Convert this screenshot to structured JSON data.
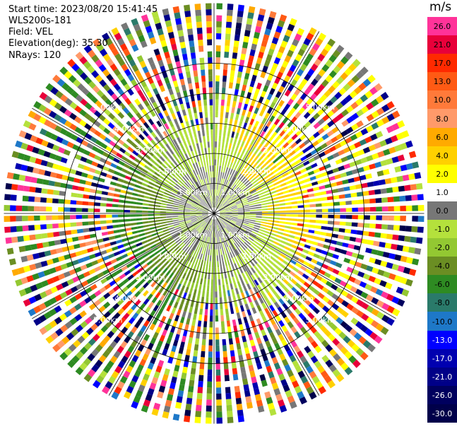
{
  "header": {
    "start_time": "Start time: 2023/08/20 15:41:45",
    "instrument": "WLS200s-181",
    "field": "Field: VEL",
    "elevation": "Elevation(deg): 35.30",
    "nrays": "NRays: 120"
  },
  "colorbar": {
    "unit": "m/s",
    "labels": [
      "26.0",
      "21.0",
      "17.0",
      "13.0",
      "10.0",
      "8.0",
      "6.0",
      "4.0",
      "2.0",
      "1.0",
      "0.0",
      "-1.0",
      "-2.0",
      "-4.0",
      "-6.0",
      "-8.0",
      "-10.0",
      "-13.0",
      "-17.0",
      "-21.0",
      "-26.0",
      "-30.0"
    ],
    "colors": [
      "#ff3399",
      "#e8003a",
      "#ff2a00",
      "#ff5a14",
      "#ff7a3a",
      "#ff9a6a",
      "#ffaa00",
      "#ffd000",
      "#ffff00",
      "#ffffff",
      "#777777",
      "#b4e13c",
      "#93c832",
      "#6b8e23",
      "#2e8b22",
      "#2a7a6a",
      "#1e78c8",
      "#0000ff",
      "#0000b0",
      "#000088",
      "#00005e",
      "#00004a"
    ],
    "label_colors": [
      "#000000",
      "#000000",
      "#000000",
      "#000000",
      "#000000",
      "#000000",
      "#000000",
      "#000000",
      "#000000",
      "#000000",
      "#000000",
      "#000000",
      "#000000",
      "#000000",
      "#000000",
      "#000000",
      "#000000",
      "#ffffff",
      "#ffffff",
      "#ffffff",
      "#ffffff",
      "#ffffff"
    ]
  },
  "chart_data": {
    "type": "heatmap",
    "projection": "polar PPI",
    "field": "VEL",
    "unit": "m/s",
    "nrays": 120,
    "range_rings_km": [
      1.0,
      2.0,
      3.0,
      4.0,
      5.0
    ],
    "max_range_km": 7.0,
    "ring_labels": [
      "1.00km",
      "2.00km",
      "3.00km",
      "4.00km",
      "5.00km"
    ],
    "spokes_deg": [
      0,
      30,
      60,
      90,
      120,
      150,
      180,
      210,
      240,
      270,
      300,
      330
    ],
    "color_levels": [
      26.0,
      21.0,
      17.0,
      13.0,
      10.0,
      8.0,
      6.0,
      4.0,
      2.0,
      1.0,
      0.0,
      -1.0,
      -2.0,
      -4.0,
      -6.0,
      -8.0,
      -10.0,
      -13.0,
      -17.0,
      -21.0,
      -26.0,
      -30.0
    ],
    "pattern": {
      "inner_radius_km_dominant_colors": [
        "#777777",
        "#b4e13c",
        "#6b8e23"
      ],
      "gradient_direction": "positive toward north-east (yellow/orange), negative toward south (blue)",
      "outer_noise_beyond_km": 3.0
    }
  }
}
